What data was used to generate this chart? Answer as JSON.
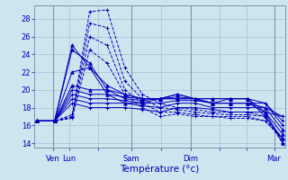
{
  "title": "",
  "xlabel": "Température (°c)",
  "ylabel": "",
  "bg_color": "#cce5ef",
  "line_color": "#0000bb",
  "grid_color": "#99bbcc",
  "axis_color": "#7799aa",
  "ylim": [
    13.5,
    29.5
  ],
  "yticks": [
    14,
    16,
    18,
    20,
    22,
    24,
    26,
    28
  ],
  "xtick_labels": [
    "Ven",
    "Lun",
    "",
    "Sam",
    "",
    "Dim",
    "",
    "",
    "Mar"
  ],
  "vline_x": [
    0.065,
    0.385,
    0.625,
    0.965
  ],
  "series": [
    {
      "y": [
        16.5,
        16.5,
        25.0,
        22.5,
        19.5,
        18.5,
        18.5,
        19.0,
        19.0,
        19.0,
        18.5,
        19.0,
        19.0,
        17.5,
        14.0
      ],
      "ls": "-",
      "mk": "^"
    },
    {
      "y": [
        16.5,
        16.5,
        24.5,
        23.0,
        20.0,
        19.0,
        18.8,
        19.0,
        19.2,
        19.0,
        19.0,
        19.0,
        19.0,
        17.0,
        14.5
      ],
      "ls": "-",
      "mk": "^"
    },
    {
      "y": [
        16.5,
        16.5,
        22.0,
        22.5,
        20.5,
        19.5,
        19.0,
        19.0,
        19.5,
        19.0,
        18.5,
        18.5,
        18.5,
        17.5,
        15.0
      ],
      "ls": "-",
      "mk": "^"
    },
    {
      "y": [
        16.5,
        16.5,
        20.5,
        20.0,
        20.0,
        19.5,
        19.0,
        19.0,
        19.5,
        19.0,
        18.5,
        18.5,
        18.5,
        18.0,
        15.5
      ],
      "ls": "-",
      "mk": "^"
    },
    {
      "y": [
        16.5,
        16.5,
        20.0,
        19.5,
        19.5,
        19.2,
        19.0,
        19.0,
        19.0,
        19.0,
        19.0,
        19.0,
        19.0,
        18.5,
        16.0
      ],
      "ls": "-",
      "mk": "+"
    },
    {
      "y": [
        16.5,
        16.5,
        19.5,
        19.0,
        19.0,
        18.8,
        18.5,
        18.5,
        18.8,
        18.8,
        18.5,
        18.5,
        18.5,
        18.5,
        16.5
      ],
      "ls": "-",
      "mk": "+"
    },
    {
      "y": [
        16.5,
        16.5,
        19.0,
        18.5,
        18.5,
        18.5,
        18.2,
        18.0,
        18.5,
        18.5,
        18.0,
        18.0,
        18.0,
        18.0,
        17.0
      ],
      "ls": "-",
      "mk": "+"
    },
    {
      "y": [
        16.5,
        16.5,
        18.5,
        18.0,
        18.0,
        18.0,
        17.8,
        17.5,
        18.0,
        18.0,
        17.8,
        17.5,
        17.5,
        17.5,
        17.0
      ],
      "ls": "-",
      "mk": "+"
    },
    {
      "y": [
        16.5,
        16.5,
        17.2,
        28.8,
        29.0,
        22.5,
        19.5,
        18.5,
        18.0,
        17.8,
        17.5,
        17.5,
        17.5,
        17.0,
        14.0
      ],
      "ls": "--",
      "mk": "+"
    },
    {
      "y": [
        16.5,
        16.5,
        17.0,
        27.5,
        27.0,
        21.0,
        19.0,
        18.0,
        17.8,
        17.5,
        17.3,
        17.2,
        17.2,
        17.0,
        14.5
      ],
      "ls": "--",
      "mk": "+"
    },
    {
      "y": [
        16.5,
        16.5,
        16.9,
        26.0,
        25.0,
        20.0,
        18.5,
        17.5,
        17.5,
        17.2,
        17.0,
        17.0,
        17.0,
        16.5,
        14.5
      ],
      "ls": "--",
      "mk": "+"
    },
    {
      "y": [
        16.5,
        16.5,
        16.8,
        24.5,
        23.0,
        19.5,
        18.0,
        17.0,
        17.3,
        17.0,
        17.0,
        16.8,
        16.8,
        16.5,
        14.5
      ],
      "ls": "--",
      "mk": "+"
    }
  ]
}
